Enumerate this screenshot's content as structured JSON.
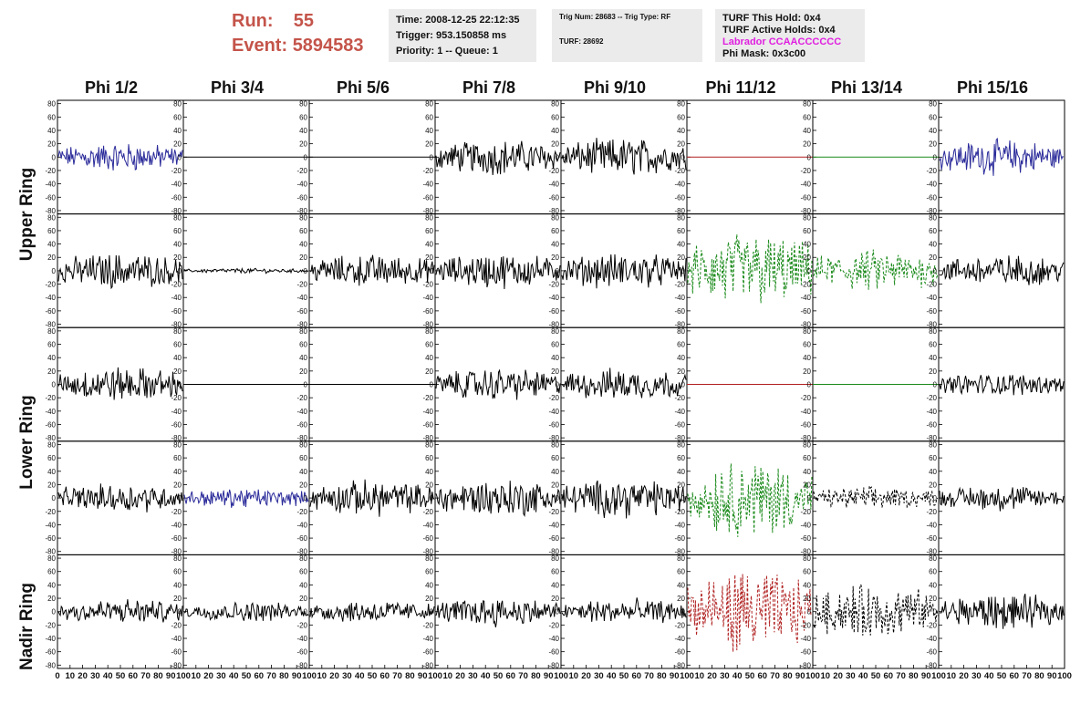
{
  "header": {
    "run_label": "Run:",
    "run_value": "55",
    "event_label": "Event:",
    "event_value": "5894583",
    "time": "Time: 2008-12-25 22:12:35",
    "trigger": "Trigger: 953.150858 ms",
    "priority": "Priority: 1 -- Queue: 1",
    "trig_num": "Trig Num: 28683 -- Trig Type: RF",
    "turf": "TURF: 28692",
    "turf_this_hold": "TURF This Hold: 0x4",
    "turf_active_holds": "TURF Active Holds: 0x4",
    "labrador": "Labrador CCAACCCCCC",
    "phi_mask": "Phi Mask: 0x3c00"
  },
  "colors": {
    "run_text": "#c4544a",
    "labrador_text": "#e020e0",
    "blue": "#2a2a9a",
    "black": "#000000",
    "red": "#b02020",
    "green": "#1a8a1a"
  },
  "chart_data": {
    "type": "line",
    "columns": [
      "Phi 1/2",
      "Phi 3/4",
      "Phi 5/6",
      "Phi 7/8",
      "Phi 9/10",
      "Phi 11/12",
      "Phi 13/14",
      "Phi 15/16"
    ],
    "ring_labels": [
      "Upper Ring",
      "Lower Ring",
      "Nadir Ring"
    ],
    "ylim": [
      -85,
      85
    ],
    "yticks": [
      -80,
      -60,
      -40,
      -20,
      0,
      20,
      40,
      60,
      80
    ],
    "xlim": [
      0,
      100
    ],
    "xticks_first": [
      "0",
      "10",
      "20",
      "30",
      "40",
      "50",
      "60",
      "70",
      "80",
      "90",
      "100"
    ],
    "xticks_other": [
      "10",
      "20",
      "30",
      "40",
      "50",
      "60",
      "70",
      "80",
      "90",
      "100"
    ],
    "rows": [
      [
        {
          "style": "blue-solid",
          "amplitude": 18
        },
        {
          "style": "flat-black",
          "amplitude": 0
        },
        {
          "style": "flat-black",
          "amplitude": 0
        },
        {
          "style": "black-solid",
          "amplitude": 22
        },
        {
          "style": "black-solid",
          "amplitude": 24
        },
        {
          "style": "flat-red",
          "amplitude": 0
        },
        {
          "style": "flat-green",
          "amplitude": 0
        },
        {
          "style": "blue-solid",
          "amplitude": 22
        }
      ],
      [
        {
          "style": "black-solid",
          "amplitude": 22
        },
        {
          "style": "black-solid",
          "amplitude": 3
        },
        {
          "style": "black-solid",
          "amplitude": 20
        },
        {
          "style": "black-solid",
          "amplitude": 22
        },
        {
          "style": "black-solid",
          "amplitude": 22
        },
        {
          "style": "green-dashed",
          "amplitude": 48
        },
        {
          "style": "green-dashed",
          "amplitude": 26
        },
        {
          "style": "black-solid",
          "amplitude": 20
        }
      ],
      [
        {
          "style": "black-solid",
          "amplitude": 22
        },
        {
          "style": "flat-black",
          "amplitude": 0
        },
        {
          "style": "flat-black",
          "amplitude": 0
        },
        {
          "style": "black-solid",
          "amplitude": 20
        },
        {
          "style": "black-solid",
          "amplitude": 20
        },
        {
          "style": "flat-red",
          "amplitude": 0
        },
        {
          "style": "flat-green",
          "amplitude": 0
        },
        {
          "style": "black-solid",
          "amplitude": 14
        }
      ],
      [
        {
          "style": "black-solid",
          "amplitude": 18
        },
        {
          "style": "blue-solid",
          "amplitude": 12
        },
        {
          "style": "black-solid",
          "amplitude": 22
        },
        {
          "style": "black-solid",
          "amplitude": 24
        },
        {
          "style": "black-solid",
          "amplitude": 24
        },
        {
          "style": "green-dashed",
          "amplitude": 48
        },
        {
          "style": "black-dashed",
          "amplitude": 14
        },
        {
          "style": "black-solid",
          "amplitude": 16
        }
      ],
      [
        {
          "style": "black-solid",
          "amplitude": 16
        },
        {
          "style": "black-solid",
          "amplitude": 12
        },
        {
          "style": "black-solid",
          "amplitude": 14
        },
        {
          "style": "black-solid",
          "amplitude": 18
        },
        {
          "style": "black-solid",
          "amplitude": 16
        },
        {
          "style": "red-dashed",
          "amplitude": 52
        },
        {
          "style": "black-dashed",
          "amplitude": 34
        },
        {
          "style": "black-solid",
          "amplitude": 22
        }
      ]
    ]
  }
}
